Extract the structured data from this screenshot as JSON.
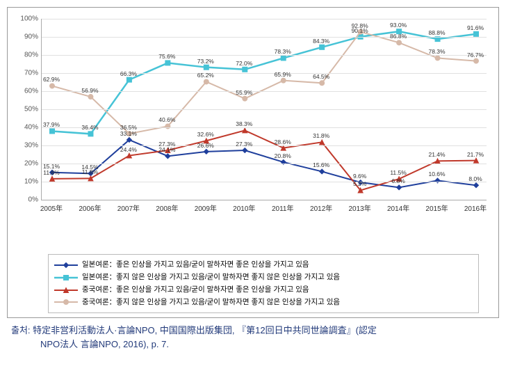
{
  "chart": {
    "type": "line",
    "background_color": "#ffffff",
    "grid_color": "#e0e0e0",
    "axis_color": "#aaaaaa",
    "label_fontsize": 10,
    "point_label_fontsize": 8.5,
    "ylim": [
      0,
      100
    ],
    "ytick_step": 10,
    "ytick_suffix": "%",
    "categories": [
      "2005年",
      "2006年",
      "2007年",
      "2008年",
      "2009年",
      "2010年",
      "2011年",
      "2012年",
      "2013年",
      "2014年",
      "2015年",
      "2016年"
    ],
    "series": [
      {
        "key": "jp_good",
        "name": "일본여론：좋은 인상을 가지고 있음/굳이 말하자면 좋은 인상을 가지고 있음",
        "color": "#1f3f9c",
        "marker": "diamond",
        "line_width": 2,
        "values": [
          15.1,
          14.5,
          33.1,
          24.1,
          26.6,
          27.3,
          20.8,
          15.6,
          9.6,
          6.8,
          10.6,
          8.0
        ]
      },
      {
        "key": "jp_bad",
        "name": "일본여론：좋지 않은 인상을 가지고 있음/굳이 말하자면 좋지 않은 인상을 가지고 있음",
        "color": "#46c3d6",
        "marker": "square",
        "line_width": 2.5,
        "values": [
          37.9,
          36.4,
          66.3,
          75.6,
          73.2,
          72.0,
          78.3,
          84.3,
          90.1,
          93.0,
          88.8,
          91.6
        ]
      },
      {
        "key": "cn_good",
        "name": "중국여론：좋은 인상을 가지고 있음/굳이 말하자면 좋은 인상을 가지고 있음",
        "color": "#c0392b",
        "marker": "triangle",
        "line_width": 2,
        "values": [
          11.6,
          11.8,
          24.4,
          27.3,
          32.6,
          38.3,
          28.6,
          31.8,
          5.2,
          11.5,
          21.4,
          21.7
        ]
      },
      {
        "key": "cn_bad",
        "name": "중국여론：좋지 않은 인상을 가지고 있음/굳이 말하자면 좋지 않은 인상을 가지고 있음",
        "color": "#d6b9a8",
        "marker": "circle",
        "line_width": 2,
        "values": [
          62.9,
          56.9,
          36.5,
          40.6,
          65.2,
          55.9,
          65.9,
          64.5,
          92.8,
          86.8,
          78.3,
          76.7
        ]
      }
    ]
  },
  "source": {
    "label": "출처:",
    "line1": "特定非営利活動法人·言論NPO, 中国国際出版集団, 『第12回日中共同世論調査』(認定",
    "line2": "NPO法人 言論NPO, 2016), p. 7."
  }
}
